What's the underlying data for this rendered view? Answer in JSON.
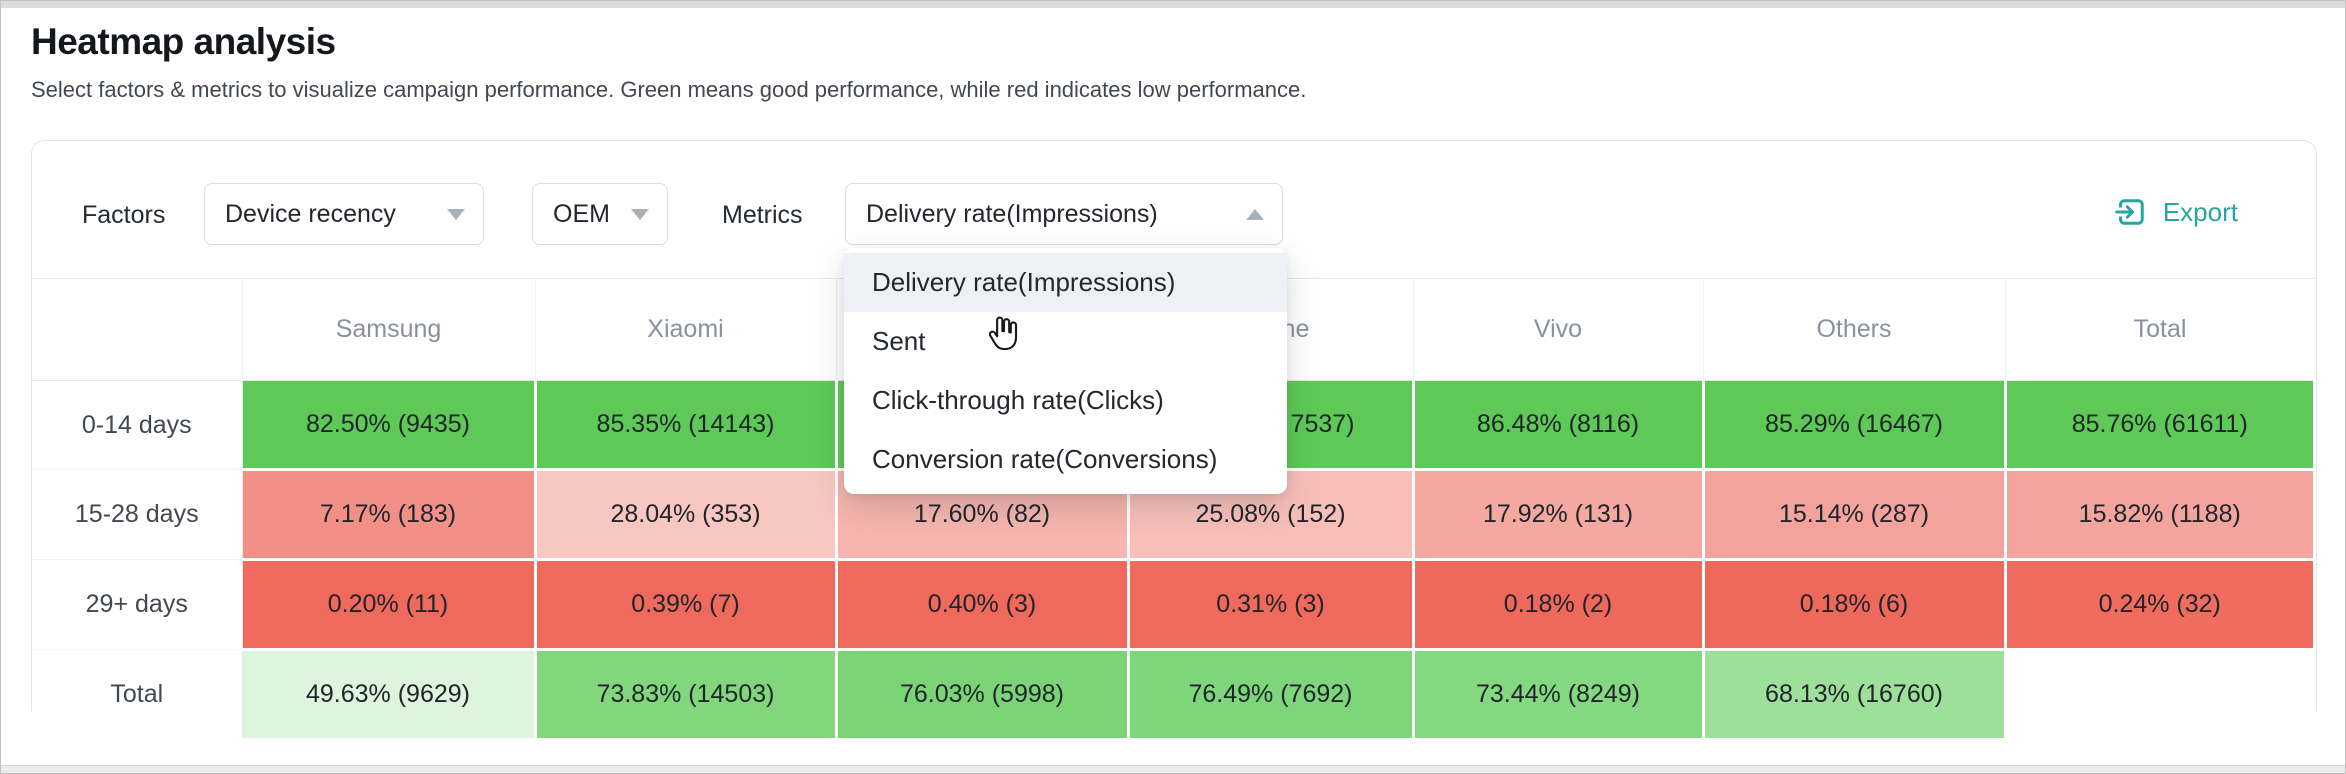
{
  "window": {
    "title": "Heatmap analysis",
    "subtitle": "Select factors & metrics to visualize campaign performance. Green means good performance, while red indicates low performance."
  },
  "controls": {
    "factors_label": "Factors",
    "factor_selects": [
      {
        "value": "Device recency"
      },
      {
        "value": "OEM"
      }
    ],
    "metrics_label": "Metrics",
    "metric_select_value": "Delivery rate(Impressions)",
    "export_label": "Export"
  },
  "metric_menu": {
    "items": [
      {
        "label": "Delivery rate(Impressions)",
        "highlighted": true
      },
      {
        "label": "Sent",
        "highlighted": false
      },
      {
        "label": "Click-through rate(Clicks)",
        "highlighted": false
      },
      {
        "label": "Conversion rate(Conversions)",
        "highlighted": false
      }
    ]
  },
  "heatmap": {
    "columns": [
      "",
      "Samsung",
      "Xiaomi",
      "",
      "iPhone",
      "Vivo",
      "Others",
      "Total"
    ],
    "rows": [
      {
        "label": "0-14 days",
        "cells": [
          {
            "text": "82.50% (9435)",
            "bg": "#5ec956"
          },
          {
            "text": "85.35% (14143)",
            "bg": "#5ec956"
          },
          {
            "text": "",
            "bg": "#5ec956"
          },
          {
            "text": "7537)",
            "bg": "#5ec956",
            "partial": true
          },
          {
            "text": "86.48% (8116)",
            "bg": "#5ec956"
          },
          {
            "text": "85.29% (16467)",
            "bg": "#5ec956"
          },
          {
            "text": "85.76% (61611)",
            "bg": "#5ec956"
          }
        ]
      },
      {
        "label": "15-28 days",
        "cells": [
          {
            "text": "7.17% (183)",
            "bg": "#f29087"
          },
          {
            "text": "28.04% (353)",
            "bg": "#f9c7c1"
          },
          {
            "text": "17.60% (82)",
            "bg": "#f6b5ae"
          },
          {
            "text": "25.08% (152)",
            "bg": "#f8bfb9"
          },
          {
            "text": "17.92% (131)",
            "bg": "#f4a8a0"
          },
          {
            "text": "15.14% (287)",
            "bg": "#f3a39b"
          },
          {
            "text": "15.82% (1188)",
            "bg": "#f3a59d"
          }
        ]
      },
      {
        "label": "29+ days",
        "cells": [
          {
            "text": "0.20% (11)",
            "bg": "#ef6a5d"
          },
          {
            "text": "0.39% (7)",
            "bg": "#ef6a5d"
          },
          {
            "text": "0.40% (3)",
            "bg": "#ef6a5d"
          },
          {
            "text": "0.31% (3)",
            "bg": "#ef6a5d"
          },
          {
            "text": "0.18% (2)",
            "bg": "#ee695c"
          },
          {
            "text": "0.18% (6)",
            "bg": "#ee695c"
          },
          {
            "text": "0.24% (32)",
            "bg": "#ef6c5f"
          }
        ]
      },
      {
        "label": "Total",
        "cells": [
          {
            "text": "49.63% (9629)",
            "bg": "#def4dc"
          },
          {
            "text": "73.83% (14503)",
            "bg": "#82d77d"
          },
          {
            "text": "76.03% (5998)",
            "bg": "#7ad476"
          },
          {
            "text": "76.49% (7692)",
            "bg": "#7dd679"
          },
          {
            "text": "73.44% (8249)",
            "bg": "#84d87f"
          },
          {
            "text": "68.13% (16760)",
            "bg": "#9edf99"
          },
          {
            "text": "",
            "bg": "#ffffff"
          }
        ]
      }
    ]
  },
  "colors": {
    "accent_teal": "#27a6a1",
    "green_strong": "#5ec956",
    "red_strong": "#ef6a5d",
    "menu_highlight": "#edf1f7"
  },
  "icons": {
    "export": "box-arrow-in-right-icon",
    "factor_caret": "chevron-down-icon",
    "metric_caret": "chevron-up-icon",
    "cursor": "hand-pointer-icon"
  }
}
